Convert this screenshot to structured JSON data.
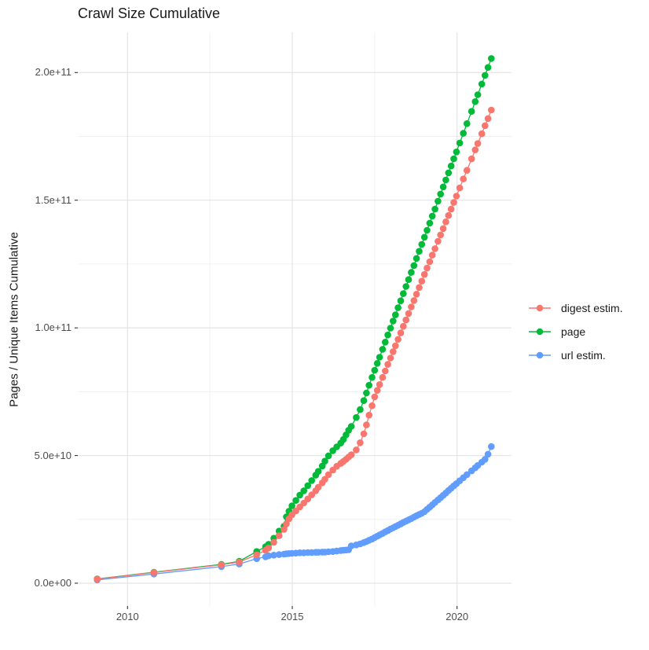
{
  "chart_data": {
    "type": "line",
    "title": "Crawl Size Cumulative",
    "xlabel": "",
    "ylabel": "Pages / Unique Items Cumulative",
    "y_unit": "values in billions (1e9) of pages / unique items",
    "grid": "major+minor",
    "legend_position": "right",
    "xlim": [
      2008.48,
      2021.64
    ],
    "ylim_e9": [
      -8.9,
      215.8
    ],
    "x_ticks": [
      {
        "year": 2010,
        "label": "2010"
      },
      {
        "year": 2015,
        "label": "2015"
      },
      {
        "year": 2020,
        "label": "2020"
      }
    ],
    "minor_x_ticks": [
      2012.5,
      2017.5
    ],
    "y_ticks": [
      {
        "value_e9": 0,
        "label": "0.0e+00"
      },
      {
        "value_e9": 50,
        "label": "5.0e+10"
      },
      {
        "value_e9": 100,
        "label": "1.0e+11"
      },
      {
        "value_e9": 150,
        "label": "1.5e+11"
      },
      {
        "value_e9": 200,
        "label": "2.0e+11"
      }
    ],
    "minor_y_ticks_e9": [
      25,
      75,
      125,
      175
    ],
    "series": [
      {
        "name": "digest estim.",
        "color": "#F8766D",
        "points": [
          [
            2009.08,
            1.6
          ],
          [
            2010.8,
            4.2
          ],
          [
            2012.85,
            7.2
          ],
          [
            2013.39,
            8.3
          ],
          [
            2013.92,
            11.1
          ],
          [
            2014.19,
            12.9
          ],
          [
            2014.28,
            13.8
          ],
          [
            2014.44,
            16.0
          ],
          [
            2014.6,
            18.6
          ],
          [
            2014.75,
            21.1
          ],
          [
            2014.82,
            23.2
          ],
          [
            2014.9,
            25.2
          ],
          [
            2014.99,
            26.8
          ],
          [
            2015.11,
            28.3
          ],
          [
            2015.23,
            29.9
          ],
          [
            2015.35,
            31.4
          ],
          [
            2015.47,
            33.0
          ],
          [
            2015.59,
            34.6
          ],
          [
            2015.71,
            36.2
          ],
          [
            2015.79,
            37.6
          ],
          [
            2015.91,
            39.3
          ],
          [
            2015.99,
            40.7
          ],
          [
            2016.1,
            42.5
          ],
          [
            2016.23,
            44.3
          ],
          [
            2016.35,
            45.8
          ],
          [
            2016.47,
            46.9
          ],
          [
            2016.55,
            47.7
          ],
          [
            2016.63,
            48.5
          ],
          [
            2016.71,
            49.4
          ],
          [
            2016.79,
            50.3
          ],
          [
            2016.94,
            52.2
          ],
          [
            2017.06,
            55.0
          ],
          [
            2017.17,
            58.5
          ],
          [
            2017.25,
            62.0
          ],
          [
            2017.33,
            65.8
          ],
          [
            2017.42,
            69.5
          ],
          [
            2017.5,
            73.0
          ],
          [
            2017.58,
            75.5
          ],
          [
            2017.65,
            77.8
          ],
          [
            2017.74,
            80.6
          ],
          [
            2017.82,
            83.1
          ],
          [
            2017.9,
            85.7
          ],
          [
            2017.98,
            88.2
          ],
          [
            2018.06,
            90.7
          ],
          [
            2018.13,
            93.0
          ],
          [
            2018.21,
            95.5
          ],
          [
            2018.29,
            98.0
          ],
          [
            2018.37,
            100.6
          ],
          [
            2018.45,
            103.1
          ],
          [
            2018.53,
            105.6
          ],
          [
            2018.61,
            108.2
          ],
          [
            2018.69,
            110.7
          ],
          [
            2018.77,
            113.2
          ],
          [
            2018.85,
            115.8
          ],
          [
            2018.93,
            118.3
          ],
          [
            2019.01,
            120.9
          ],
          [
            2019.09,
            123.4
          ],
          [
            2019.17,
            125.9
          ],
          [
            2019.25,
            128.5
          ],
          [
            2019.33,
            131.0
          ],
          [
            2019.42,
            133.9
          ],
          [
            2019.5,
            136.4
          ],
          [
            2019.58,
            138.9
          ],
          [
            2019.66,
            141.5
          ],
          [
            2019.74,
            144.0
          ],
          [
            2019.82,
            146.5
          ],
          [
            2019.9,
            149.1
          ],
          [
            2019.98,
            151.6
          ],
          [
            2020.08,
            154.8
          ],
          [
            2020.19,
            158.3
          ],
          [
            2020.3,
            161.7
          ],
          [
            2020.44,
            166.2
          ],
          [
            2020.55,
            169.7
          ],
          [
            2020.63,
            172.2
          ],
          [
            2020.75,
            176.0
          ],
          [
            2020.85,
            179.2
          ],
          [
            2020.94,
            182.0
          ],
          [
            2021.04,
            185.3
          ]
        ]
      },
      {
        "name": "page",
        "color": "#00BA38",
        "points": [
          [
            2009.08,
            1.7
          ],
          [
            2010.8,
            4.3
          ],
          [
            2012.85,
            7.4
          ],
          [
            2013.39,
            8.6
          ],
          [
            2013.92,
            12.4
          ],
          [
            2014.19,
            14.3
          ],
          [
            2014.28,
            15.2
          ],
          [
            2014.44,
            17.6
          ],
          [
            2014.6,
            20.4
          ],
          [
            2014.75,
            22.3
          ],
          [
            2014.82,
            26.0
          ],
          [
            2014.9,
            28.2
          ],
          [
            2014.99,
            30.3
          ],
          [
            2015.11,
            32.4
          ],
          [
            2015.23,
            34.5
          ],
          [
            2015.35,
            36.2
          ],
          [
            2015.47,
            38.2
          ],
          [
            2015.59,
            40.2
          ],
          [
            2015.71,
            42.3
          ],
          [
            2015.79,
            43.8
          ],
          [
            2015.91,
            45.9
          ],
          [
            2015.99,
            47.8
          ],
          [
            2016.1,
            49.9
          ],
          [
            2016.23,
            51.9
          ],
          [
            2016.35,
            53.4
          ],
          [
            2016.47,
            54.9
          ],
          [
            2016.55,
            56.3
          ],
          [
            2016.63,
            58.1
          ],
          [
            2016.71,
            59.9
          ],
          [
            2016.79,
            61.4
          ],
          [
            2016.94,
            64.9
          ],
          [
            2017.06,
            68.0
          ],
          [
            2017.17,
            71.5
          ],
          [
            2017.25,
            74.5
          ],
          [
            2017.33,
            77.5
          ],
          [
            2017.42,
            80.6
          ],
          [
            2017.5,
            83.4
          ],
          [
            2017.58,
            86.1
          ],
          [
            2017.65,
            88.5
          ],
          [
            2017.74,
            91.6
          ],
          [
            2017.82,
            94.4
          ],
          [
            2017.9,
            97.2
          ],
          [
            2017.98,
            99.9
          ],
          [
            2018.06,
            102.7
          ],
          [
            2018.13,
            105.1
          ],
          [
            2018.21,
            107.9
          ],
          [
            2018.29,
            110.6
          ],
          [
            2018.37,
            113.4
          ],
          [
            2018.45,
            116.2
          ],
          [
            2018.53,
            118.9
          ],
          [
            2018.61,
            121.7
          ],
          [
            2018.69,
            124.4
          ],
          [
            2018.77,
            127.2
          ],
          [
            2018.85,
            130.0
          ],
          [
            2018.93,
            132.7
          ],
          [
            2019.01,
            135.5
          ],
          [
            2019.09,
            138.2
          ],
          [
            2019.17,
            141.0
          ],
          [
            2019.25,
            143.8
          ],
          [
            2019.33,
            146.5
          ],
          [
            2019.42,
            149.6
          ],
          [
            2019.5,
            152.4
          ],
          [
            2019.58,
            155.2
          ],
          [
            2019.66,
            157.9
          ],
          [
            2019.74,
            160.7
          ],
          [
            2019.82,
            163.4
          ],
          [
            2019.9,
            166.2
          ],
          [
            2019.98,
            168.9
          ],
          [
            2020.08,
            172.4
          ],
          [
            2020.19,
            176.2
          ],
          [
            2020.3,
            180.0
          ],
          [
            2020.44,
            184.8
          ],
          [
            2020.55,
            188.6
          ],
          [
            2020.63,
            191.3
          ],
          [
            2020.75,
            195.5
          ],
          [
            2020.85,
            198.9
          ],
          [
            2020.94,
            202.0
          ],
          [
            2021.04,
            205.5
          ]
        ]
      },
      {
        "name": "url estim.",
        "color": "#619CFF",
        "points": [
          [
            2009.08,
            1.3
          ],
          [
            2010.8,
            3.6
          ],
          [
            2012.85,
            6.5
          ],
          [
            2013.39,
            7.5
          ],
          [
            2013.92,
            9.6
          ],
          [
            2014.19,
            10.3
          ],
          [
            2014.28,
            10.7
          ],
          [
            2014.44,
            11.0
          ],
          [
            2014.6,
            11.2
          ],
          [
            2014.75,
            11.4
          ],
          [
            2014.82,
            11.5
          ],
          [
            2014.9,
            11.6
          ],
          [
            2014.99,
            11.7
          ],
          [
            2015.11,
            11.8
          ],
          [
            2015.23,
            11.9
          ],
          [
            2015.35,
            11.9
          ],
          [
            2015.47,
            12.0
          ],
          [
            2015.59,
            12.0
          ],
          [
            2015.71,
            12.1
          ],
          [
            2015.79,
            12.1
          ],
          [
            2015.91,
            12.2
          ],
          [
            2015.99,
            12.2
          ],
          [
            2016.1,
            12.3
          ],
          [
            2016.23,
            12.4
          ],
          [
            2016.35,
            12.6
          ],
          [
            2016.47,
            12.8
          ],
          [
            2016.55,
            12.9
          ],
          [
            2016.63,
            13.0
          ],
          [
            2016.71,
            13.1
          ],
          [
            2016.79,
            14.6
          ],
          [
            2016.94,
            15.0
          ],
          [
            2017.06,
            15.4
          ],
          [
            2017.17,
            15.9
          ],
          [
            2017.25,
            16.3
          ],
          [
            2017.33,
            16.8
          ],
          [
            2017.42,
            17.3
          ],
          [
            2017.5,
            17.9
          ],
          [
            2017.58,
            18.4
          ],
          [
            2017.65,
            18.9
          ],
          [
            2017.74,
            19.5
          ],
          [
            2017.82,
            20.1
          ],
          [
            2017.9,
            20.6
          ],
          [
            2017.98,
            21.2
          ],
          [
            2018.06,
            21.7
          ],
          [
            2018.13,
            22.2
          ],
          [
            2018.21,
            22.7
          ],
          [
            2018.29,
            23.2
          ],
          [
            2018.37,
            23.8
          ],
          [
            2018.45,
            24.3
          ],
          [
            2018.53,
            24.8
          ],
          [
            2018.61,
            25.3
          ],
          [
            2018.69,
            25.9
          ],
          [
            2018.77,
            26.4
          ],
          [
            2018.85,
            26.9
          ],
          [
            2018.93,
            27.4
          ],
          [
            2019.01,
            28.0
          ],
          [
            2019.09,
            28.9
          ],
          [
            2019.17,
            29.8
          ],
          [
            2019.25,
            30.7
          ],
          [
            2019.33,
            31.6
          ],
          [
            2019.42,
            32.6
          ],
          [
            2019.5,
            33.5
          ],
          [
            2019.58,
            34.4
          ],
          [
            2019.66,
            35.3
          ],
          [
            2019.74,
            36.3
          ],
          [
            2019.82,
            37.2
          ],
          [
            2019.9,
            38.1
          ],
          [
            2019.98,
            39.0
          ],
          [
            2020.08,
            40.1
          ],
          [
            2020.19,
            41.3
          ],
          [
            2020.3,
            42.5
          ],
          [
            2020.44,
            44.0
          ],
          [
            2020.55,
            45.2
          ],
          [
            2020.63,
            46.1
          ],
          [
            2020.75,
            47.4
          ],
          [
            2020.85,
            48.5
          ],
          [
            2020.94,
            50.5
          ],
          [
            2021.04,
            53.5
          ]
        ]
      }
    ]
  },
  "colors": {
    "background": "#FFFFFF",
    "grid_major": "#E4E4E4",
    "grid_minor": "#F0F0F0",
    "tick_mark": "#333333",
    "tick_label": "#4D4D4D",
    "text": "#1A1A1A"
  }
}
